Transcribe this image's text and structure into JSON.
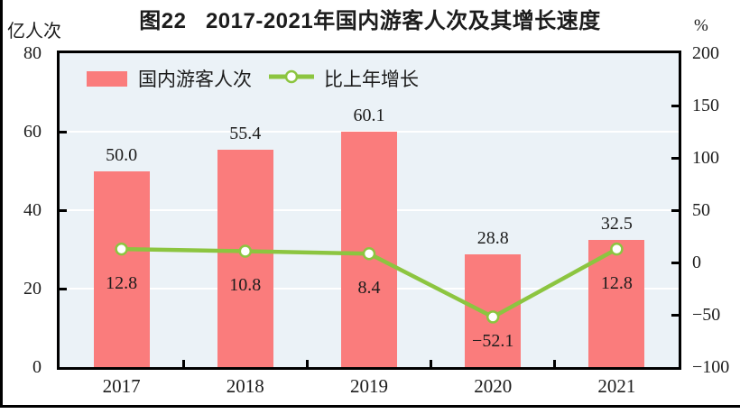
{
  "figure": {
    "title": "图22   2017-2021年国内游客人次及其增长速度"
  },
  "chart_data": {
    "type": "bar+line",
    "title": "图22   2017-2021年国内游客人次及其增长速度",
    "categories": [
      "2017",
      "2018",
      "2019",
      "2020",
      "2021"
    ],
    "series": [
      {
        "name": "国内游客人次",
        "type": "bar",
        "axis": "left",
        "values": [
          50.0,
          55.4,
          60.1,
          28.8,
          32.5
        ],
        "labels": [
          "50.0",
          "55.4",
          "60.1",
          "28.8",
          "32.5"
        ],
        "color": "#FA7C7C"
      },
      {
        "name": "比上年增长",
        "type": "line",
        "axis": "right",
        "values": [
          12.8,
          10.8,
          8.4,
          -52.1,
          12.8
        ],
        "labels": [
          "12.8",
          "10.8",
          "8.4",
          "−52.1",
          "12.8"
        ],
        "color": "#8CC540",
        "marker": "circle-white-fill"
      }
    ],
    "left_axis": {
      "label": "亿人次",
      "min": 0,
      "max": 80,
      "ticks": [
        "80",
        "60",
        "40",
        "20",
        "0"
      ],
      "tick_values": [
        80,
        60,
        40,
        20,
        0
      ]
    },
    "right_axis": {
      "label": "%",
      "min": -100,
      "max": 200,
      "ticks": [
        "200",
        "150",
        "100",
        "50",
        "0",
        "−50",
        "−100"
      ],
      "tick_values": [
        200,
        150,
        100,
        50,
        0,
        -50,
        -100
      ]
    },
    "legend": {
      "position": "top-left-inside",
      "items": [
        "国内游客人次",
        "比上年增长"
      ]
    },
    "grid": "horizontal-white-lines-at-left-ticks",
    "plot_background": "#EBF2F7"
  }
}
